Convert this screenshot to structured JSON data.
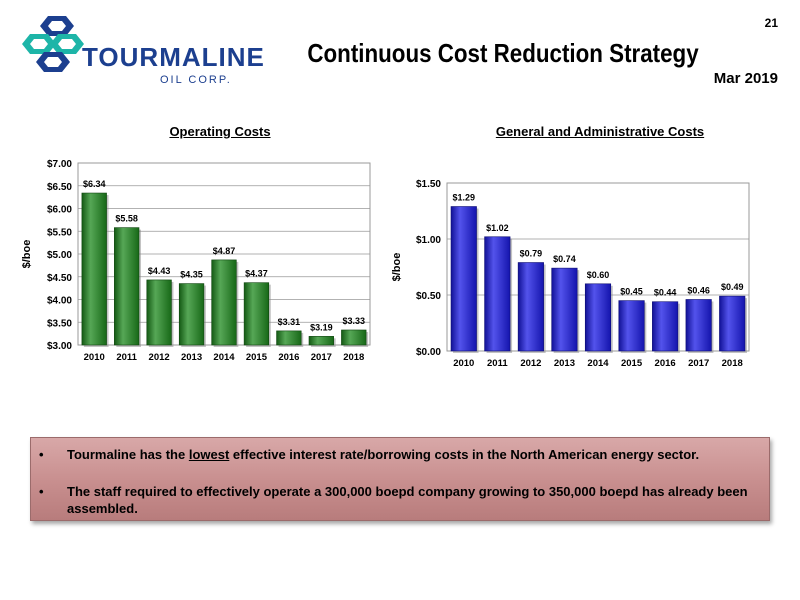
{
  "page": {
    "number": "21",
    "title": "Continuous Cost Reduction Strategy",
    "date": "Mar 2019"
  },
  "logo": {
    "name": "TOURMALINE",
    "sub": "OIL CORP.",
    "colors": [
      "#1c3f8f",
      "#1db5a8"
    ]
  },
  "bullets": [
    {
      "dot": "•",
      "pre": "Tourmaline has the ",
      "emph": "lowest",
      "post": " effective interest rate/borrowing costs in the North American energy sector."
    },
    {
      "dot": "•",
      "pre": "The staff required to effectively operate a 300,000 boepd company growing to 350,000 boepd has already been assembled.",
      "emph": "",
      "post": ""
    }
  ],
  "chart_data": [
    {
      "type": "bar",
      "title": "Operating Costs",
      "ylabel": "$/boe",
      "categories": [
        "2010",
        "2011",
        "2012",
        "2013",
        "2014",
        "2015",
        "2016",
        "2017",
        "2018"
      ],
      "values": [
        6.34,
        5.58,
        4.43,
        4.35,
        4.87,
        4.37,
        3.31,
        3.19,
        3.33
      ],
      "labels": [
        "$6.34",
        "$5.58",
        "$4.43",
        "$4.35",
        "$4.87",
        "$4.37",
        "$3.31",
        "$3.19",
        "$3.33"
      ],
      "ylim": [
        3.0,
        7.0
      ],
      "yticks": [
        3.0,
        3.5,
        4.0,
        4.5,
        5.0,
        5.5,
        6.0,
        6.5,
        7.0
      ],
      "ytick_labels": [
        "$3.00",
        "$3.50",
        "$4.00",
        "$4.50",
        "$5.00",
        "$5.50",
        "$6.00",
        "$6.50",
        "$7.00"
      ],
      "grid": true,
      "color": "#1e8a1e"
    },
    {
      "type": "bar",
      "title": "General and Administrative Costs",
      "ylabel": "$/boe",
      "categories": [
        "2010",
        "2011",
        "2012",
        "2013",
        "2014",
        "2015",
        "2016",
        "2017",
        "2018"
      ],
      "values": [
        1.29,
        1.02,
        0.79,
        0.74,
        0.6,
        0.45,
        0.44,
        0.46,
        0.49
      ],
      "labels": [
        "$1.29",
        "$1.02",
        "$0.79",
        "$0.74",
        "$0.60",
        "$0.45",
        "$0.44",
        "$0.46",
        "$0.49"
      ],
      "ylim": [
        0.0,
        1.5
      ],
      "yticks": [
        0.0,
        0.5,
        1.0,
        1.5
      ],
      "ytick_labels": [
        "$0.00",
        "$0.50",
        "$1.00",
        "$1.50"
      ],
      "grid": true,
      "color": "#1a1ae6"
    }
  ]
}
